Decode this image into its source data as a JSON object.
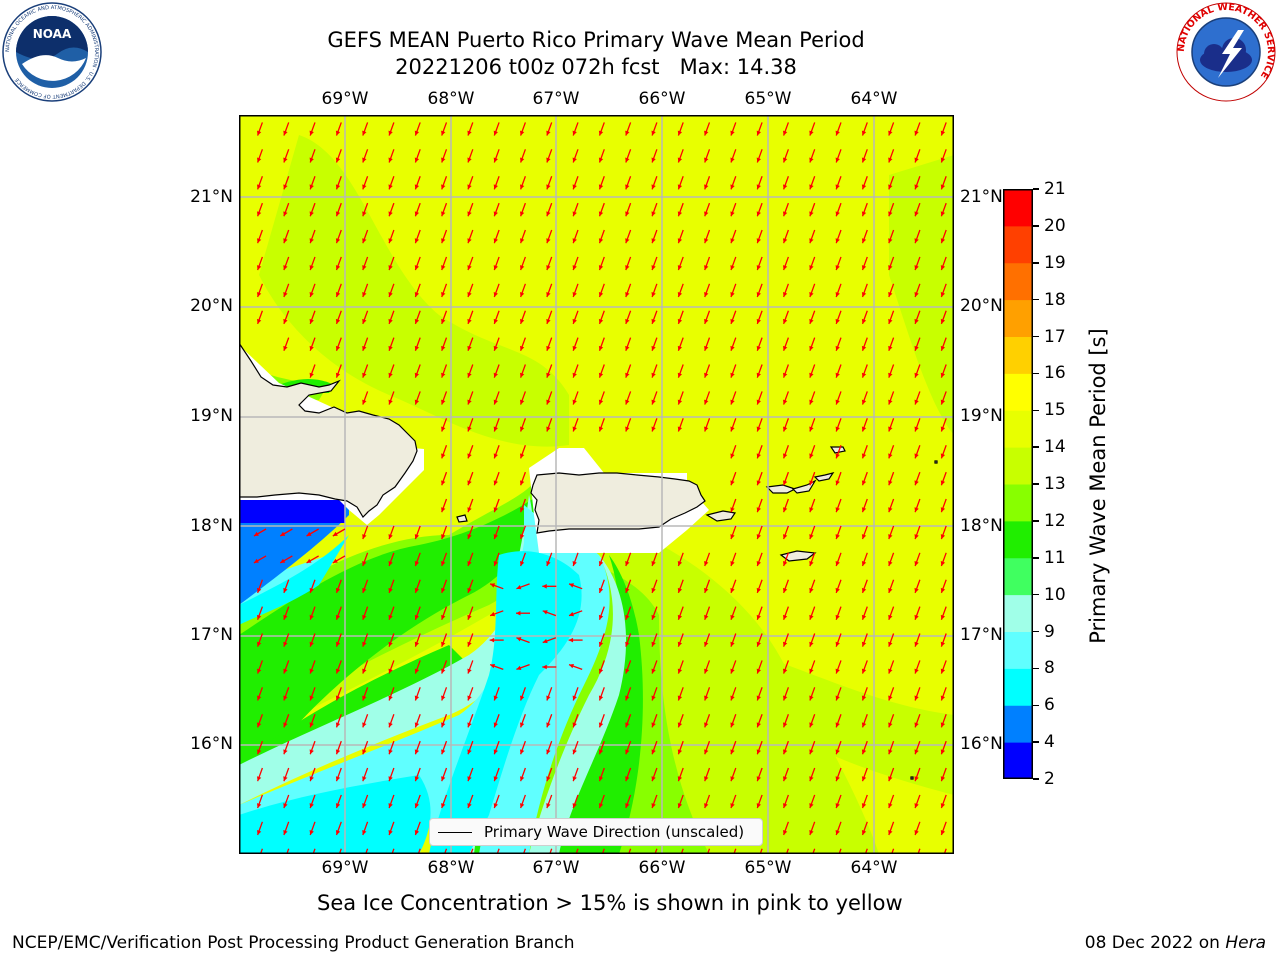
{
  "header": {
    "title_line1": "GEFS MEAN Puerto Rico Primary Wave Mean Period",
    "title_line2": "20221206 t00z 072h fcst   Max: 14.38"
  },
  "logos": {
    "left": {
      "name": "NOAA",
      "ring_text": "NATIONAL OCEANIC AND ATMOSPHERIC ADMINISTRATION · U.S. DEPARTMENT OF COMMERCE"
    },
    "right": {
      "ring_text": "NATIONAL WEATHER SERVICE"
    }
  },
  "axes": {
    "lon_labels": [
      "69°W",
      "68°W",
      "67°W",
      "66°W",
      "65°W",
      "64°W"
    ],
    "lat_labels": [
      "21°N",
      "20°N",
      "19°N",
      "18°N",
      "17°N",
      "16°N"
    ]
  },
  "legend": {
    "label": "Primary Wave Direction (unscaled)"
  },
  "colorbar": {
    "label": "Primary Wave Mean Period [s]",
    "ticks": [
      "2",
      "4",
      "6",
      "8",
      "9",
      "10",
      "11",
      "12",
      "13",
      "14",
      "15",
      "16",
      "17",
      "18",
      "19",
      "20",
      "21"
    ],
    "colors": [
      "#0000ff",
      "#0080ff",
      "#00ffff",
      "#60ffff",
      "#a0ffe8",
      "#40ff60",
      "#20ee00",
      "#88ff00",
      "#c8ff00",
      "#e8ff00",
      "#ffff00",
      "#ffd000",
      "#ffa000",
      "#ff7000",
      "#ff4000",
      "#ff0000"
    ]
  },
  "notes": {
    "sea_ice": "Sea Ice Concentration > 15% is shown in pink to yellow"
  },
  "footer": {
    "left": "NCEP/EMC/Verification Post Processing Product Generation Branch",
    "date": "08 Dec 2022 on",
    "host": "Hera"
  },
  "map_colors": {
    "period_14": "#e8ff00",
    "period_13": "#c8ff00",
    "period_12": "#88ff00",
    "period_11": "#20ee00",
    "period_9": "#a0ffe8",
    "period_8": "#60ffff",
    "period_6": "#00ffff",
    "period_4": "#0080ff",
    "period_2": "#0000ff",
    "land": "#efedde",
    "arrow": "#ff0000"
  }
}
